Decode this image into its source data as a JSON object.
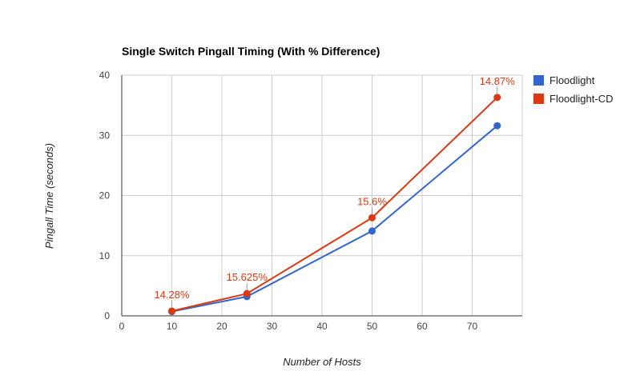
{
  "chart_data": {
    "type": "line",
    "title": "Single Switch Pingall Timing (With % Difference)",
    "xlabel": "Number of Hosts",
    "ylabel": "Pingall Time (seconds)",
    "xlim": [
      0,
      80
    ],
    "ylim": [
      0,
      40
    ],
    "x_ticks": [
      0,
      10,
      20,
      30,
      40,
      50,
      60,
      70
    ],
    "y_ticks": [
      0,
      10,
      20,
      30,
      40
    ],
    "grid": true,
    "legend_position": "right",
    "series": [
      {
        "name": "Floodlight",
        "color": "#3366cc",
        "points": [
          {
            "x": 10,
            "y": 0.7
          },
          {
            "x": 25,
            "y": 3.2
          },
          {
            "x": 50,
            "y": 14.1
          },
          {
            "x": 75,
            "y": 31.6
          }
        ]
      },
      {
        "name": "Floodlight-CD",
        "color": "#dc3912",
        "points": [
          {
            "x": 10,
            "y": 0.8
          },
          {
            "x": 25,
            "y": 3.7
          },
          {
            "x": 50,
            "y": 16.3
          },
          {
            "x": 75,
            "y": 36.3
          }
        ],
        "annotations": [
          "14.28%",
          "15.625%",
          "15.6%",
          "14.87%"
        ]
      }
    ]
  }
}
